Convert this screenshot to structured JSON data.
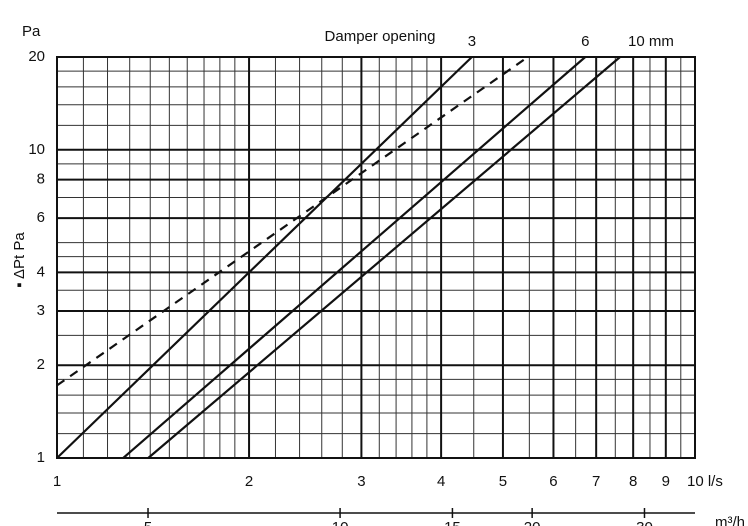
{
  "chart_data": {
    "type": "line",
    "title": "Damper opening",
    "y_unit": "Pa",
    "ylabel": "▪ ΔPt Pa",
    "log_x": true,
    "log_y": true,
    "grid": true,
    "xlim": [
      1,
      10
    ],
    "xticks": [
      1,
      2,
      3,
      4,
      5,
      6,
      7,
      8,
      9,
      {
        "value": 10,
        "label": "10 l/s"
      }
    ],
    "xminorticks": [
      1.1,
      1.2,
      1.3,
      1.4,
      1.5,
      1.6,
      1.7,
      1.8,
      1.9,
      2.2,
      2.4,
      2.6,
      2.8,
      3.2,
      3.4,
      3.6,
      3.8,
      4.5,
      5.5,
      6.5,
      7.5,
      8.5,
      9.5
    ],
    "ylim": [
      1,
      20
    ],
    "yticks": [
      1,
      2,
      3,
      4,
      6,
      8,
      10,
      20
    ],
    "yminorticks": [
      1.2,
      1.4,
      1.6,
      1.8,
      2.5,
      3.5,
      4.5,
      5,
      7,
      9,
      12,
      14,
      16,
      18
    ],
    "x2lim": [
      3.6,
      36
    ],
    "x2ticks": [
      5,
      10,
      15,
      20,
      30
    ],
    "x2label": "m³/h",
    "series": [
      {
        "name": "3",
        "color": "#111",
        "dash": false,
        "x": [
          1,
          4.47
        ],
        "values": [
          1,
          20
        ]
      },
      {
        "color": "#111",
        "dash": true,
        "x": [
          1,
          5.47
        ],
        "values": [
          1.72,
          20
        ]
      },
      {
        "name": "6",
        "color": "#111",
        "dash": false,
        "x": [
          1.27,
          6.73
        ],
        "values": [
          1,
          20
        ]
      },
      {
        "name": "10 mm",
        "color": "#111",
        "dash": false,
        "x": [
          1.39,
          7.63
        ],
        "values": [
          1,
          20
        ]
      }
    ]
  }
}
